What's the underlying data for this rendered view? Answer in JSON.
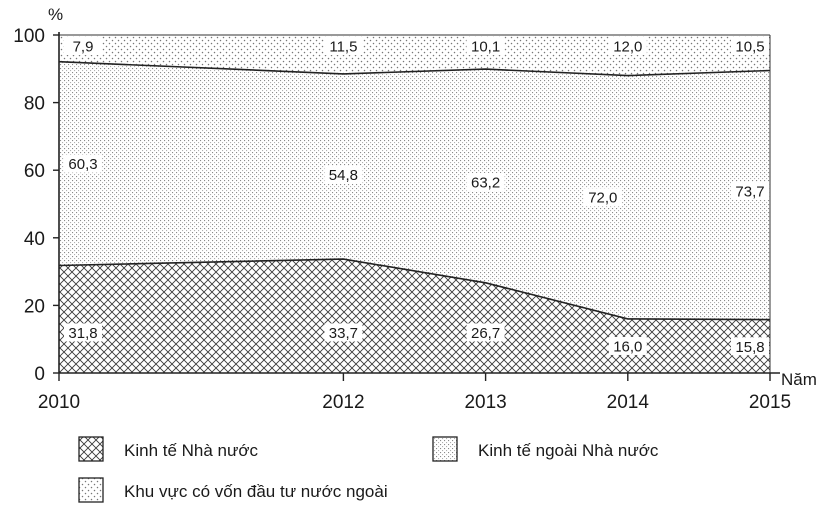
{
  "chart_data": {
    "type": "area",
    "stacked_percent": true,
    "y_unit": "%",
    "x_unit": "Năm",
    "x": [
      2010,
      2012,
      2013,
      2014,
      2015
    ],
    "x_tick_labels": [
      "2010",
      "2012",
      "2013",
      "2014",
      "2015"
    ],
    "yticks": [
      0,
      20,
      40,
      60,
      80,
      100
    ],
    "ylim": [
      0,
      100
    ],
    "grid": false,
    "legend_position": "bottom",
    "series": [
      {
        "name": "Kinh tế Nhà nước",
        "values": [
          31.8,
          33.7,
          26.7,
          16.0,
          15.8
        ],
        "labels": [
          "31,8",
          "33,7",
          "26,7",
          "16,0",
          "15,8"
        ],
        "pattern": "crosshatch"
      },
      {
        "name": "Kinh tế ngoài Nhà nước",
        "values": [
          60.3,
          54.8,
          63.2,
          72.0,
          73.7
        ],
        "labels": [
          "60,3",
          "54,8",
          "63,2",
          "72,0",
          "73,7"
        ],
        "pattern": "grid-dots"
      },
      {
        "name": "Khu vực có vốn đầu tư nước ngoài",
        "values": [
          7.9,
          11.5,
          10.1,
          12.0,
          10.5
        ],
        "labels": [
          "7,9",
          "11,5",
          "10,1",
          "12,0",
          "10,5"
        ],
        "pattern": "dots"
      }
    ]
  }
}
